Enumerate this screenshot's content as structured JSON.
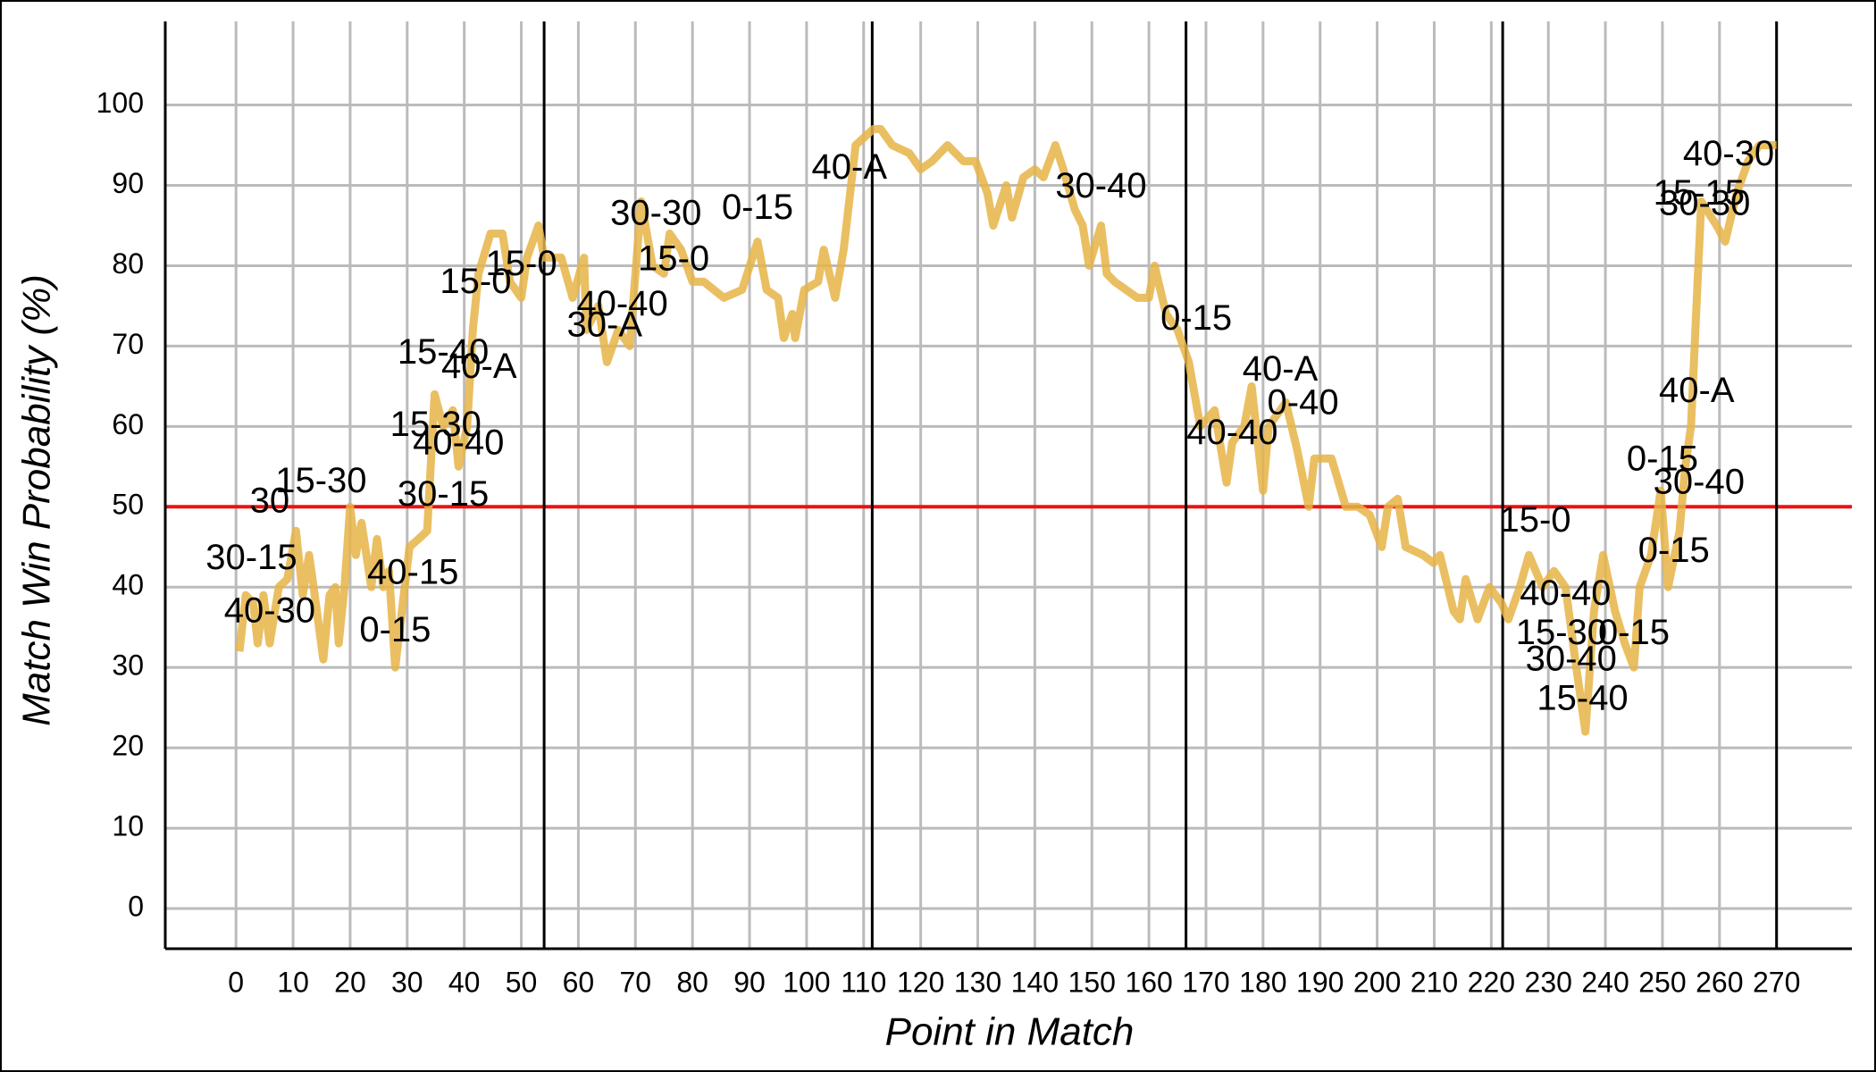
{
  "chart_data": {
    "type": "line",
    "xlabel": "Point in Match",
    "ylabel": "Match Win Probability (%)",
    "x": [
      0.6,
      1.7,
      3,
      3.8,
      4.8,
      5.9,
      7.5,
      9,
      10.5,
      11.7,
      12.8,
      13.6,
      15.3,
      16.4,
      17.4,
      18,
      19,
      20,
      21,
      22,
      23.7,
      24.7,
      25.8,
      26.8,
      27.9,
      29.4,
      30.4,
      32,
      33.5,
      34.8,
      36.3,
      38,
      39,
      40.5,
      41.5,
      42.5,
      44.6,
      46.7,
      48,
      50,
      51,
      53,
      54,
      57,
      59,
      61,
      61.4,
      63.5,
      65,
      67,
      69,
      71,
      73,
      75,
      76,
      78,
      80,
      82,
      85.5,
      88.7,
      91.4,
      93,
      95,
      96,
      97.5,
      98,
      99.6,
      102,
      103,
      105,
      106.5,
      108.6,
      111.7,
      113,
      115,
      118,
      120,
      122,
      124.7,
      127.5,
      129.6,
      131.7,
      132.7,
      135,
      136,
      138,
      140,
      141.5,
      143.6,
      145,
      147,
      148.4,
      149.5,
      151.6,
      152.6,
      154,
      158,
      160,
      161,
      163,
      165,
      167,
      169,
      171.5,
      173.6,
      174.6,
      176.7,
      178,
      180,
      181,
      184,
      186,
      188,
      189,
      192,
      194.5,
      196.6,
      198.7,
      200.8,
      201.9,
      203.6,
      205,
      208,
      209.9,
      211,
      213.4,
      214.5,
      215.5,
      217.6,
      219.7,
      221.8,
      223,
      225,
      226.6,
      229,
      231,
      233,
      234.9,
      236.5,
      238,
      239.6,
      241.7,
      243.4,
      245,
      246,
      248,
      249.7,
      251,
      253,
      254,
      255,
      256.8,
      259.5,
      261,
      263,
      265,
      267,
      270
    ],
    "series": [
      {
        "color": "#e6b447",
        "values": [
          32,
          39,
          38,
          33,
          39,
          33,
          40,
          41,
          47,
          39,
          44,
          40,
          31,
          39,
          40,
          33,
          40,
          50,
          44,
          48,
          40,
          46,
          40,
          42,
          30,
          39,
          45,
          46,
          47,
          64,
          60,
          62,
          55,
          60,
          72,
          79,
          84,
          84,
          78,
          76,
          81,
          85,
          81,
          81,
          76,
          81,
          72,
          75,
          68,
          72,
          70,
          88,
          80,
          79,
          84,
          82,
          78,
          78,
          76,
          77,
          83,
          77,
          76,
          71,
          74,
          71,
          77,
          78,
          82,
          76,
          82,
          95,
          97,
          97,
          95,
          94,
          92,
          93,
          95,
          93,
          93,
          89,
          85,
          90,
          86,
          91,
          92,
          91,
          95,
          92,
          87,
          85,
          80,
          85,
          79,
          78,
          76,
          76,
          80,
          74,
          72,
          68,
          60,
          62,
          53,
          58,
          60,
          65,
          52,
          60,
          63,
          57,
          50,
          56,
          56,
          50,
          50,
          49,
          45,
          50,
          51,
          45,
          44,
          43,
          44,
          37,
          36,
          41,
          36,
          40,
          38,
          36,
          40,
          44,
          40,
          42,
          40,
          30,
          22,
          37,
          44,
          37,
          33,
          30,
          40,
          44,
          52,
          40,
          47,
          55,
          60,
          88,
          85,
          83,
          89,
          93,
          95,
          95
        ]
      }
    ],
    "xlim": [
      -12.4,
      283.2
    ],
    "ylim": [
      -5,
      110.4
    ],
    "xticks": [
      0,
      10,
      20,
      30,
      40,
      50,
      60,
      70,
      80,
      90,
      100,
      110,
      120,
      130,
      140,
      150,
      160,
      170,
      180,
      190,
      200,
      210,
      220,
      230,
      240,
      250,
      260,
      270
    ],
    "yticks": [
      0,
      10,
      20,
      30,
      40,
      50,
      60,
      70,
      80,
      90,
      100
    ],
    "grid": true,
    "set_boundaries": [
      54,
      111.5,
      166.5,
      222,
      270
    ],
    "reference_line": {
      "value": 50,
      "color": "#ee1111"
    },
    "annotations": [
      {
        "text": "30",
        "x": 5.9,
        "y": 50.5
      },
      {
        "text": "30-15",
        "x": 2.7,
        "y": 43.4
      },
      {
        "text": "40-30",
        "x": 5.9,
        "y": 36.8
      },
      {
        "text": "15-30",
        "x": 14.9,
        "y": 53
      },
      {
        "text": "0-15",
        "x": 27.9,
        "y": 34.4
      },
      {
        "text": "40-15",
        "x": 31,
        "y": 41.6
      },
      {
        "text": "30-15",
        "x": 36.3,
        "y": 51.3
      },
      {
        "text": "15-30",
        "x": 35,
        "y": 60
      },
      {
        "text": "40-40",
        "x": 39,
        "y": 57.7
      },
      {
        "text": "15-40",
        "x": 36.3,
        "y": 69
      },
      {
        "text": "40-A",
        "x": 42.6,
        "y": 67.2
      },
      {
        "text": "15-0",
        "x": 42,
        "y": 77.8
      },
      {
        "text": "15-0",
        "x": 50,
        "y": 80
      },
      {
        "text": "30-A",
        "x": 64.6,
        "y": 72.4
      },
      {
        "text": "40-40",
        "x": 67.7,
        "y": 75
      },
      {
        "text": "30-30",
        "x": 73.6,
        "y": 86.3
      },
      {
        "text": "0-15",
        "x": 91.4,
        "y": 87
      },
      {
        "text": "15-0",
        "x": 76.7,
        "y": 80.6
      },
      {
        "text": "40-A",
        "x": 107.5,
        "y": 92
      },
      {
        "text": "30-40",
        "x": 151.6,
        "y": 89.7
      },
      {
        "text": "0-15",
        "x": 168.3,
        "y": 73.2
      },
      {
        "text": "40-A",
        "x": 183,
        "y": 66.9
      },
      {
        "text": "0-40",
        "x": 187,
        "y": 62.7
      },
      {
        "text": "40-40",
        "x": 174.6,
        "y": 59
      },
      {
        "text": "15-0",
        "x": 227.7,
        "y": 48.1
      },
      {
        "text": "40-40",
        "x": 233,
        "y": 39
      },
      {
        "text": "15-30",
        "x": 232.3,
        "y": 34.1
      },
      {
        "text": "30-40",
        "x": 234,
        "y": 30.8
      },
      {
        "text": "15-40",
        "x": 236,
        "y": 25.9
      },
      {
        "text": "0-15",
        "x": 250,
        "y": 55.7
      },
      {
        "text": "30-40",
        "x": 256.4,
        "y": 52.8
      },
      {
        "text": "40-A",
        "x": 256,
        "y": 64.2
      },
      {
        "text": "40-30",
        "x": 261.6,
        "y": 93.7
      },
      {
        "text": "15-15",
        "x": 256.4,
        "y": 88.8
      },
      {
        "text": "30-30",
        "x": 257.4,
        "y": 87.5
      },
      {
        "text": "0-15",
        "x": 252,
        "y": 44.3
      },
      {
        "text": "0-15",
        "x": 245,
        "y": 34.1
      }
    ]
  }
}
